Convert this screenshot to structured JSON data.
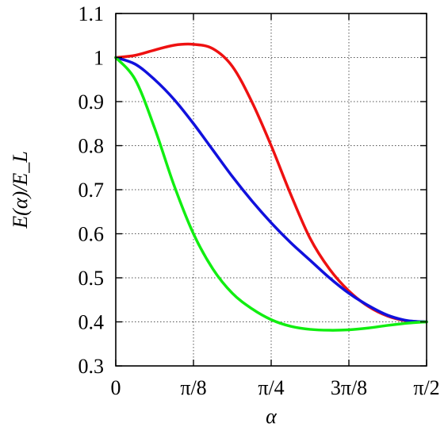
{
  "chart_data": {
    "type": "line",
    "title": "",
    "xlabel": "α",
    "ylabel": "E(α)/E_L",
    "xlim": [
      0,
      1.5708
    ],
    "ylim": [
      0.3,
      1.1
    ],
    "grid": true,
    "legend": "none",
    "x_ticks": [
      {
        "value": 0,
        "label": "0"
      },
      {
        "value": 0.3927,
        "label": "π/8"
      },
      {
        "value": 0.7854,
        "label": "π/4"
      },
      {
        "value": 1.1781,
        "label": "3π/8"
      },
      {
        "value": 1.5708,
        "label": "π/2"
      }
    ],
    "y_ticks": [
      {
        "value": 0.3,
        "label": "0.3"
      },
      {
        "value": 0.4,
        "label": "0.4"
      },
      {
        "value": 0.5,
        "label": "0.5"
      },
      {
        "value": 0.6,
        "label": "0.6"
      },
      {
        "value": 0.7,
        "label": "0.7"
      },
      {
        "value": 0.8,
        "label": "0.8"
      },
      {
        "value": 0.9,
        "label": "0.9"
      },
      {
        "value": 1.0,
        "label": "1"
      },
      {
        "value": 1.1,
        "label": "1.1"
      }
    ],
    "series": [
      {
        "color": "#ee1111",
        "x": [
          0,
          0.0982,
          0.1963,
          0.2945,
          0.3927,
          0.4909,
          0.589,
          0.6872,
          0.7854,
          0.8836,
          0.9817,
          1.0799,
          1.1781,
          1.2763,
          1.3744,
          1.4726,
          1.5708
        ],
        "y": [
          1.0,
          1.005,
          1.017,
          1.028,
          1.03,
          1.02,
          0.98,
          0.9,
          0.8,
          0.69,
          0.59,
          0.52,
          0.47,
          0.435,
          0.413,
          0.402,
          0.4
        ]
      },
      {
        "color": "#1111dd",
        "x": [
          0,
          0.0982,
          0.1963,
          0.2945,
          0.3927,
          0.4909,
          0.589,
          0.6872,
          0.7854,
          0.8836,
          0.9817,
          1.0799,
          1.1781,
          1.2763,
          1.3744,
          1.4726,
          1.5708
        ],
        "y": [
          1.0,
          0.985,
          0.95,
          0.905,
          0.85,
          0.79,
          0.73,
          0.675,
          0.625,
          0.58,
          0.54,
          0.5,
          0.465,
          0.437,
          0.415,
          0.403,
          0.4
        ]
      },
      {
        "color": "#11ee11",
        "x": [
          0,
          0.0982,
          0.1963,
          0.2945,
          0.3927,
          0.4909,
          0.589,
          0.6872,
          0.7854,
          0.8836,
          0.9817,
          1.0799,
          1.1781,
          1.2763,
          1.3744,
          1.4726,
          1.5708
        ],
        "y": [
          1.0,
          0.95,
          0.84,
          0.71,
          0.6,
          0.52,
          0.465,
          0.43,
          0.405,
          0.39,
          0.383,
          0.381,
          0.382,
          0.386,
          0.392,
          0.397,
          0.4
        ]
      }
    ]
  }
}
